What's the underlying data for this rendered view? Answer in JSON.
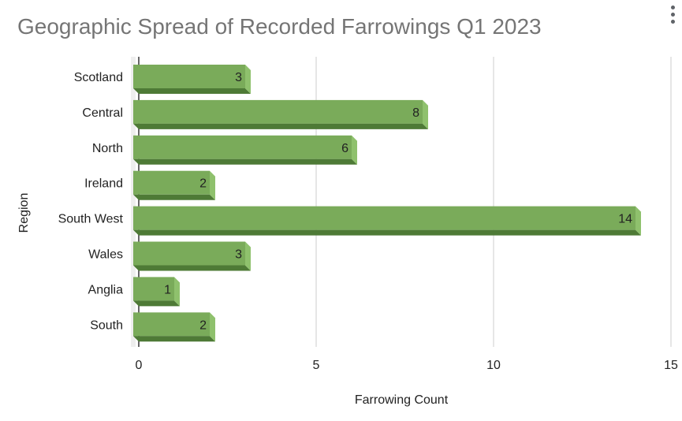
{
  "chart_data": {
    "type": "bar",
    "orientation": "horizontal",
    "title": "Geographic Spread of Recorded Farrowings Q1 2023",
    "xlabel": "Farrowing Count",
    "ylabel": "Region",
    "categories": [
      "Scotland",
      "Central",
      "North",
      "Ireland",
      "South West",
      "Wales",
      "Anglia",
      "South"
    ],
    "values": [
      3,
      8,
      6,
      2,
      14,
      3,
      1,
      2
    ],
    "xlim": [
      0,
      15
    ],
    "xticks": [
      "0",
      "5",
      "10",
      "15"
    ],
    "grid": true,
    "legend": "none",
    "data_labels": true,
    "colors": {
      "bar_front": "#7aab5a",
      "bar_top": "#8fc16d",
      "bar_side": "#4e7a36",
      "grid": "#cccccc"
    }
  },
  "menu": {
    "icon": "more-vert-icon"
  }
}
